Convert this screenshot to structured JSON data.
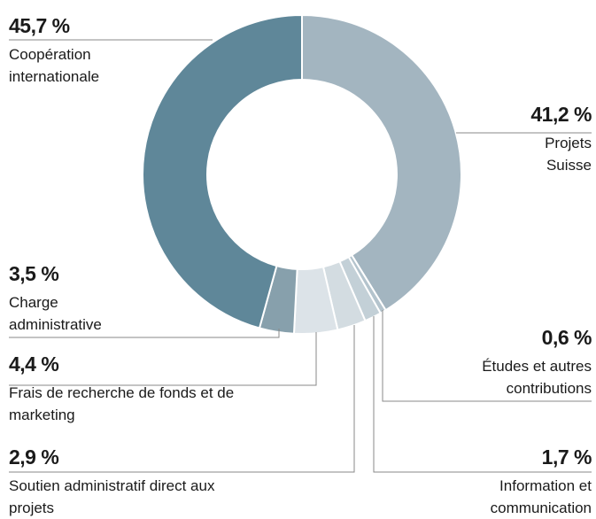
{
  "chart_data": {
    "type": "donut",
    "categories": [
      "Projets Suisse",
      "Études et autres contributions",
      "Information et communication",
      "Soutien administratif direct aux projets",
      "Frais de recherche de fonds et de marketing",
      "Charge administrative",
      "Coopération internationale"
    ],
    "values": [
      41.2,
      0.6,
      1.7,
      2.9,
      4.4,
      3.5,
      45.7
    ],
    "value_labels": [
      "41,2 %",
      "0,6 %",
      "1,7 %",
      "2,9 %",
      "4,4 %",
      "3,5 %",
      "45,7 %"
    ],
    "colors": [
      "#a3b5c0",
      "#b4c4cd",
      "#c3d0d7",
      "#d3dce1",
      "#dce3e8",
      "#87a0ac",
      "#5f8799"
    ]
  }
}
